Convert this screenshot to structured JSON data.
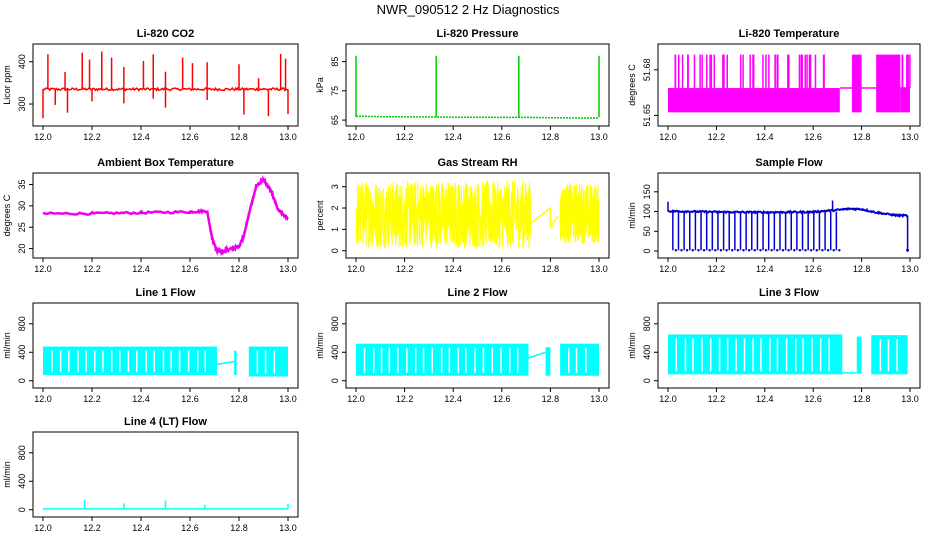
{
  "page_title": "NWR_090512  2 Hz Diagnostics",
  "chart_data": [
    {
      "type": "line",
      "title": "Li-820 CO2",
      "ylabel": "Licor ppm",
      "color": "#ff0000",
      "x_ticks": [
        "12.0",
        "12.2",
        "12.4",
        "12.6",
        "12.8",
        "13.0"
      ],
      "xlim": [
        12.0,
        13.0
      ],
      "y_ticks": [
        300,
        400
      ],
      "ylim": [
        255,
        435
      ],
      "baseline": 335,
      "series": [
        {
          "name": "CO2",
          "x": [
            12.0,
            12.1,
            12.2,
            12.3,
            12.4,
            12.5,
            12.6,
            12.7,
            12.8,
            12.9,
            13.0
          ],
          "values": [
            335,
            335,
            335,
            335,
            335,
            335,
            335,
            334,
            336,
            336,
            335
          ]
        }
      ],
      "spikes_up": [
        12.02,
        12.09,
        12.16,
        12.19,
        12.24,
        12.28,
        12.33,
        12.41,
        12.45,
        12.5,
        12.57,
        12.61,
        12.67,
        12.8,
        12.88,
        12.97,
        12.99
      ],
      "spikes_down": [
        12.0,
        12.05,
        12.1,
        12.2,
        12.33,
        12.45,
        12.5,
        12.67,
        12.82,
        12.92,
        13.0
      ]
    },
    {
      "type": "line",
      "title": "Li-820 Pressure",
      "ylabel": "kPa",
      "color": "#00cc00",
      "x_ticks": [
        "12.0",
        "12.2",
        "12.4",
        "12.6",
        "12.8",
        "13.0"
      ],
      "xlim": [
        12.0,
        13.0
      ],
      "y_ticks": [
        65,
        75,
        85
      ],
      "ylim": [
        64,
        90
      ],
      "series": [
        {
          "name": "Pressure",
          "x": [
            12.0,
            12.1,
            12.2,
            12.3,
            12.4,
            12.5,
            12.6,
            12.7,
            12.8,
            12.9,
            13.0
          ],
          "values": [
            66.3,
            66.2,
            66.1,
            66.1,
            66.0,
            66.0,
            65.9,
            65.9,
            65.8,
            65.7,
            65.7
          ]
        }
      ],
      "spikes_up": [
        12.0,
        12.33,
        12.67,
        13.0
      ]
    },
    {
      "type": "line",
      "title": "Li-820 Temperature",
      "ylabel": "degrees C",
      "color": "#ff00ff",
      "x_ticks": [
        "12.0",
        "12.2",
        "12.4",
        "12.6",
        "12.8",
        "13.0"
      ],
      "xlim": [
        12.0,
        13.0
      ],
      "y_ticks": [
        "51.65",
        "51.68"
      ],
      "ylim": [
        51.645,
        51.695
      ],
      "series": [
        {
          "name": "Temperature",
          "x": [
            12.0,
            12.7,
            12.76,
            12.8,
            12.86,
            12.96,
            13.0
          ],
          "values": [
            51.66,
            51.66,
            51.675,
            51.66,
            51.675,
            51.66,
            51.66
          ]
        }
      ]
    },
    {
      "type": "line",
      "title": "Ambient Box Temperature",
      "ylabel": "degrees C",
      "color": "#ee00ee",
      "x_ticks": [
        "12.0",
        "12.2",
        "12.4",
        "12.6",
        "12.8",
        "13.0"
      ],
      "xlim": [
        12.0,
        13.0
      ],
      "y_ticks": [
        20,
        25,
        30,
        35
      ],
      "ylim": [
        18.5,
        37
      ],
      "series": [
        {
          "name": "Box Temp",
          "x": [
            12.0,
            12.2,
            12.4,
            12.6,
            12.67,
            12.69,
            12.71,
            12.73,
            12.76,
            12.8,
            12.82,
            12.84,
            12.87,
            12.9,
            12.93,
            12.96,
            13.0
          ],
          "values": [
            28.2,
            28.2,
            28.4,
            28.6,
            28.8,
            22.5,
            19.5,
            19.3,
            19.8,
            20.5,
            23,
            28,
            34.5,
            36.2,
            33.5,
            29,
            27.0
          ]
        }
      ]
    },
    {
      "type": "line",
      "title": "Gas Stream RH",
      "ylabel": "percent",
      "color": "#ffff00",
      "x_ticks": [
        "12.0",
        "12.2",
        "12.4",
        "12.6",
        "12.8",
        "13.0"
      ],
      "xlim": [
        12.0,
        13.0
      ],
      "y_ticks": [
        0,
        1,
        2,
        3
      ],
      "ylim": [
        -0.2,
        3.5
      ],
      "series": [
        {
          "name": "RH",
          "x": [
            12.0,
            12.72,
            12.8,
            12.8,
            12.83,
            13.0
          ],
          "values": [
            1.7,
            1.3,
            2.0,
            1.1,
            1.6,
            1.7
          ]
        }
      ]
    },
    {
      "type": "line",
      "title": "Sample Flow",
      "ylabel": "ml/min",
      "color": "#0000cc",
      "x_ticks": [
        "12.0",
        "12.2",
        "12.4",
        "12.6",
        "12.8",
        "13.0"
      ],
      "xlim": [
        12.0,
        13.0
      ],
      "y_ticks": [
        0,
        50,
        100,
        150
      ],
      "ylim": [
        -10,
        190
      ],
      "series": [
        {
          "name": "Sample Flow",
          "x": [
            12.0,
            12.2,
            12.4,
            12.6,
            12.7,
            12.75,
            12.8,
            12.85,
            12.9,
            12.95,
            12.99
          ],
          "values": [
            101,
            99,
            98,
            99,
            104,
            107,
            106,
            99,
            94,
            90,
            90
          ]
        }
      ]
    },
    {
      "type": "line",
      "title": "Line 1 Flow",
      "ylabel": "ml/min",
      "color": "#00ffff",
      "x_ticks": [
        "12.0",
        "12.2",
        "12.4",
        "12.6",
        "12.8",
        "13.0"
      ],
      "xlim": [
        12.0,
        13.0
      ],
      "y_ticks": [
        0,
        400,
        800
      ],
      "ylim": [
        -60,
        1050
      ],
      "band": [
        {
          "from": 12.0,
          "to": 12.71,
          "low": 80,
          "high": 480
        },
        {
          "from": 12.78,
          "to": 12.79,
          "low": 80,
          "high": 420
        },
        {
          "from": 12.84,
          "to": 13.0,
          "low": 60,
          "high": 480
        }
      ],
      "series": [
        {
          "name": "Line 1",
          "x": [
            12.71,
            12.78
          ],
          "values": [
            230,
            270
          ]
        }
      ]
    },
    {
      "type": "line",
      "title": "Line 2 Flow",
      "ylabel": "ml/min",
      "color": "#00ffff",
      "x_ticks": [
        "12.0",
        "12.2",
        "12.4",
        "12.6",
        "12.8",
        "13.0"
      ],
      "xlim": [
        12.0,
        13.0
      ],
      "y_ticks": [
        0,
        400,
        800
      ],
      "ylim": [
        -60,
        1050
      ],
      "band": [
        {
          "from": 12.0,
          "to": 12.71,
          "low": 70,
          "high": 520
        },
        {
          "from": 12.78,
          "to": 12.8,
          "low": 70,
          "high": 470
        },
        {
          "from": 12.84,
          "to": 13.0,
          "low": 70,
          "high": 520
        }
      ],
      "series": [
        {
          "name": "Line 2",
          "x": [
            12.71,
            12.78
          ],
          "values": [
            320,
            400
          ]
        }
      ]
    },
    {
      "type": "line",
      "title": "Line 3 Flow",
      "ylabel": "ml/min",
      "color": "#00ffff",
      "x_ticks": [
        "12.0",
        "12.2",
        "12.4",
        "12.6",
        "12.8",
        "13.0"
      ],
      "xlim": [
        12.0,
        13.0
      ],
      "y_ticks": [
        0,
        400,
        800
      ],
      "ylim": [
        -60,
        1050
      ],
      "band": [
        {
          "from": 12.0,
          "to": 12.72,
          "low": 90,
          "high": 650
        },
        {
          "from": 12.78,
          "to": 12.8,
          "low": 100,
          "high": 620
        },
        {
          "from": 12.84,
          "to": 12.99,
          "low": 90,
          "high": 640
        }
      ],
      "series": [
        {
          "name": "Line 3",
          "x": [
            12.72,
            12.78
          ],
          "values": [
            110,
            110
          ]
        }
      ]
    },
    {
      "type": "line",
      "title": "Line 4 (LT) Flow",
      "ylabel": "ml/min",
      "color": "#00ffff",
      "x_ticks": [
        "12.0",
        "12.2",
        "12.4",
        "12.6",
        "12.8",
        "13.0"
      ],
      "xlim": [
        12.0,
        13.0
      ],
      "y_ticks": [
        0,
        400,
        800
      ],
      "ylim": [
        -60,
        1050
      ],
      "series": [
        {
          "name": "Line 4",
          "x": [
            12.0,
            13.0
          ],
          "values": [
            12,
            12
          ]
        }
      ],
      "spikes_up": [
        12.17,
        12.33,
        12.5,
        12.66,
        13.0
      ]
    }
  ]
}
